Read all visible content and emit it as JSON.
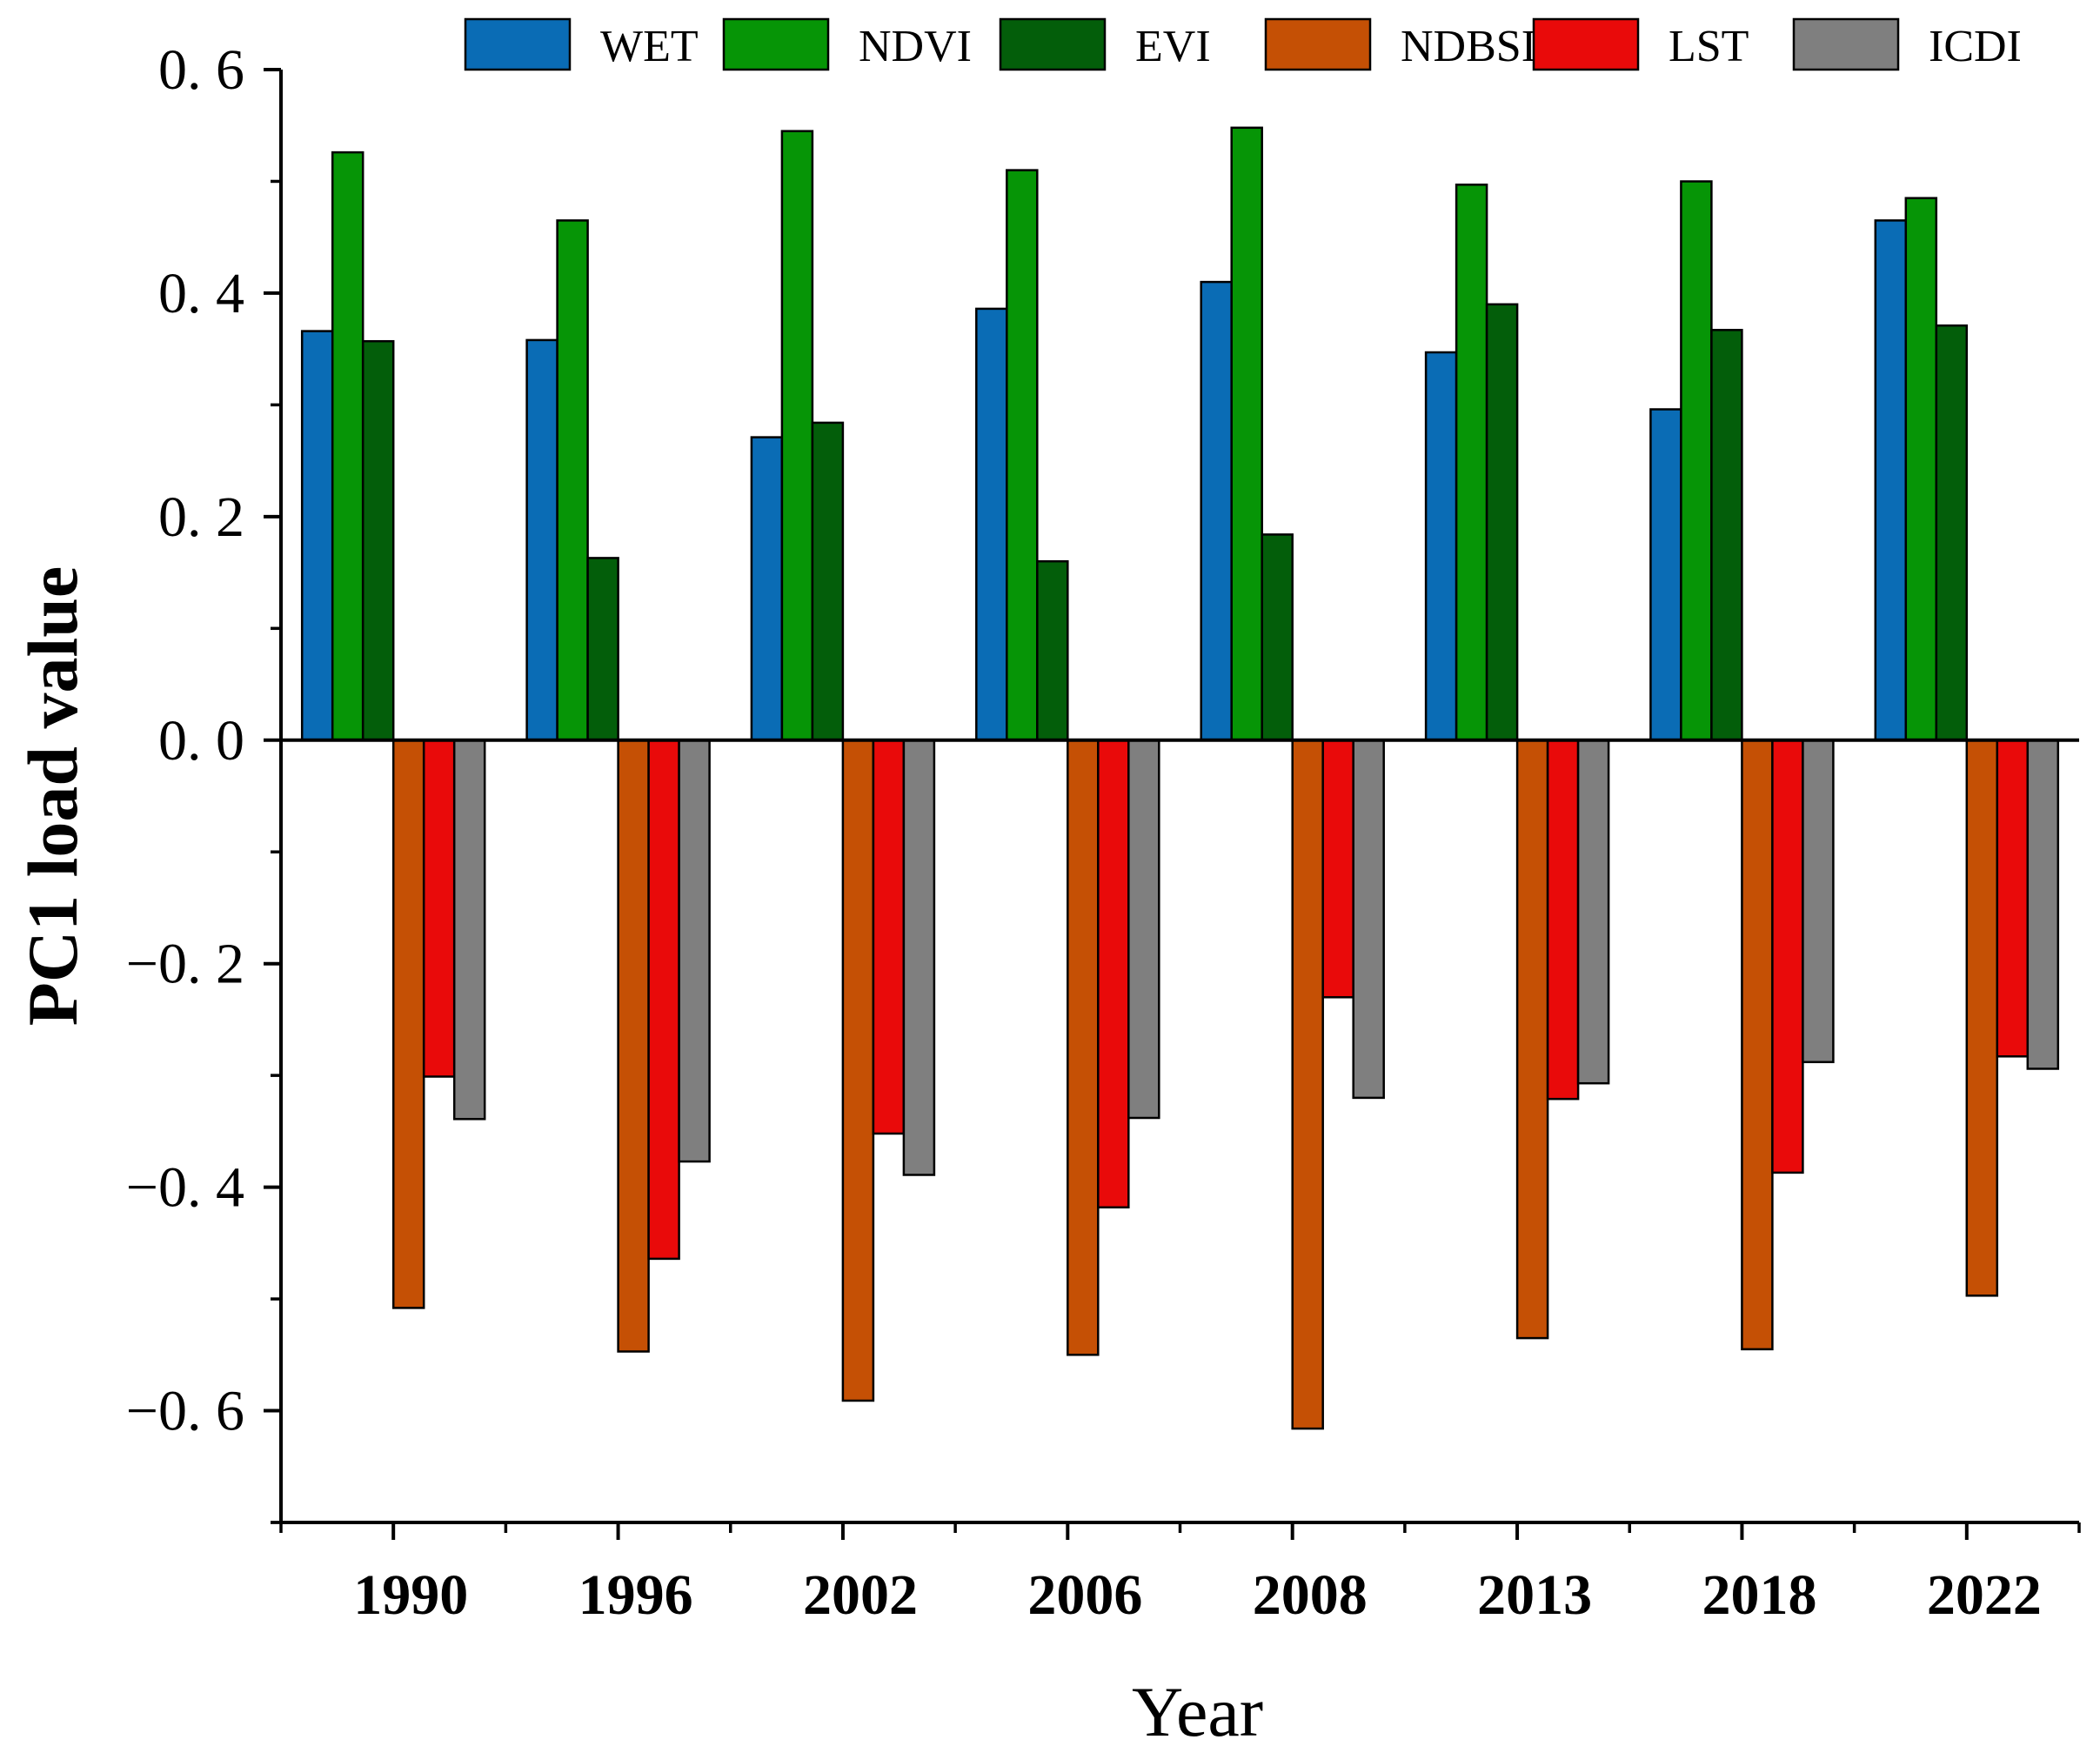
{
  "chart_data": {
    "type": "bar",
    "title": "",
    "xlabel": "Year",
    "ylabel": "PC1 load value",
    "ylim": [
      -0.7,
      0.6
    ],
    "y_ticks": [
      0.6,
      0.4,
      0.2,
      0.0,
      -0.2,
      -0.4,
      -0.6
    ],
    "y_tick_labels": [
      "0. 6",
      "0. 4",
      "0. 2",
      "0. 0",
      "−0. 2",
      "−0. 4",
      "−0. 6"
    ],
    "categories": [
      "1990",
      "1996",
      "2002",
      "2006",
      "2008",
      "2013",
      "2018",
      "2022"
    ],
    "legend_position": "top",
    "series": [
      {
        "name": "WET",
        "color": "#0a6cb5",
        "values": [
          0.366,
          0.358,
          0.271,
          0.386,
          0.41,
          0.347,
          0.296,
          0.465
        ]
      },
      {
        "name": "NDVI",
        "color": "#069506",
        "values": [
          0.526,
          0.465,
          0.545,
          0.51,
          0.548,
          0.497,
          0.5,
          0.485
        ]
      },
      {
        "name": "EVI",
        "color": "#035e0a",
        "values": [
          0.357,
          0.163,
          0.284,
          0.16,
          0.184,
          0.39,
          0.367,
          0.371
        ]
      },
      {
        "name": "NDBSI",
        "color": "#c55005",
        "values": [
          -0.508,
          -0.547,
          -0.591,
          -0.55,
          -0.616,
          -0.535,
          -0.545,
          -0.497
        ]
      },
      {
        "name": "LST",
        "color": "#e90a0a",
        "values": [
          -0.301,
          -0.464,
          -0.352,
          -0.418,
          -0.23,
          -0.321,
          -0.387,
          -0.283
        ]
      },
      {
        "name": "ICDI",
        "color": "#7f7f7f",
        "values": [
          -0.339,
          -0.377,
          -0.389,
          -0.338,
          -0.32,
          -0.307,
          -0.288,
          -0.294
        ]
      }
    ]
  }
}
